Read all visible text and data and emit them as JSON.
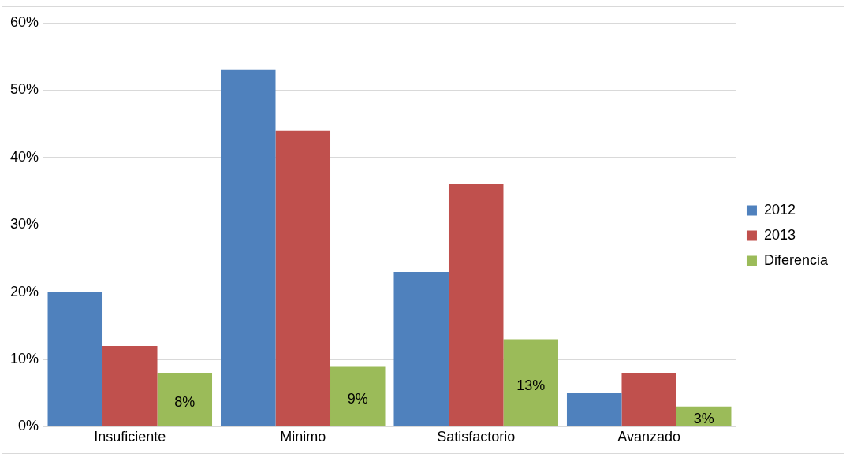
{
  "chart_data": {
    "type": "bar",
    "categories": [
      "Insuficiente",
      "Minimo",
      "Satisfactorio",
      "Avanzado"
    ],
    "series": [
      {
        "name": "2012",
        "color": "#4f81bd",
        "values": [
          20,
          53,
          23,
          5
        ]
      },
      {
        "name": "2013",
        "color": "#c0504d",
        "values": [
          12,
          44,
          36,
          8
        ]
      },
      {
        "name": "Diferencia",
        "color": "#9bbb59",
        "values": [
          8,
          9,
          13,
          3
        ],
        "value_labels": [
          "8%",
          "9%",
          "13%",
          "3%"
        ]
      }
    ],
    "ylim": [
      0,
      60
    ],
    "yticks": [
      {
        "value": 0,
        "label": "0%"
      },
      {
        "value": 10,
        "label": "10%"
      },
      {
        "value": 20,
        "label": "20%"
      },
      {
        "value": 30,
        "label": "30%"
      },
      {
        "value": 40,
        "label": "40%"
      },
      {
        "value": 50,
        "label": "50%"
      },
      {
        "value": 60,
        "label": "60%"
      }
    ],
    "grid": "y",
    "legend": "right"
  }
}
